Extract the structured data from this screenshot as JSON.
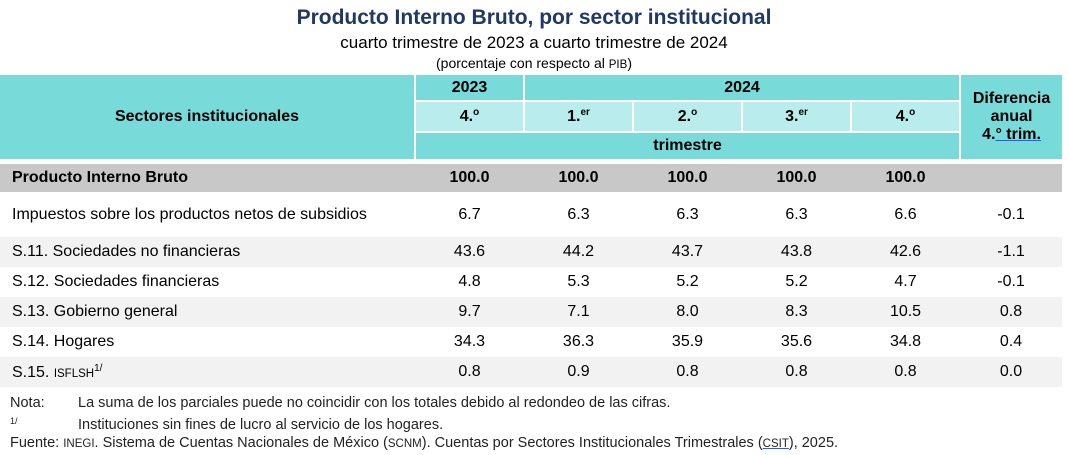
{
  "chart_data": {
    "type": "table",
    "title": "Producto Interno Bruto, por sector institucional",
    "subtitle": "cuarto trimestre de 2023 a cuarto trimestre de 2024",
    "units_prefix": "(porcentaje con respecto al ",
    "units_abbr": "PIB",
    "units_suffix": ")",
    "header": {
      "row_label": "Sectores institucionales",
      "year_2023": "2023",
      "year_2024": "2024",
      "quarters": [
        {
          "num": "4.",
          "sup": "o"
        },
        {
          "num": "1.",
          "sup": "er"
        },
        {
          "num": "2.",
          "sup": "o"
        },
        {
          "num": "3.",
          "sup": "er"
        },
        {
          "num": "4.",
          "sup": "o"
        }
      ],
      "period_label": "trimestre",
      "diff_line1": "Diferencia",
      "diff_line2": "anual",
      "diff_line3_a": "4.",
      "diff_line3_b": "°",
      "diff_line3_c": " trim."
    },
    "rows": [
      {
        "label": "Producto Interno Bruto",
        "values": [
          "100.0",
          "100.0",
          "100.0",
          "100.0",
          "100.0"
        ],
        "diff": ""
      },
      {
        "label": "Impuestos sobre los productos netos de subsidios",
        "values": [
          "6.7",
          "6.3",
          "6.3",
          "6.3",
          "6.6"
        ],
        "diff": "-0.1"
      },
      {
        "label": "S.11. Sociedades no financieras",
        "values": [
          "43.6",
          "44.2",
          "43.7",
          "43.8",
          "42.6"
        ],
        "diff": "-1.1"
      },
      {
        "label": "S.12. Sociedades financieras",
        "values": [
          "4.8",
          "5.3",
          "5.2",
          "5.2",
          "4.7"
        ],
        "diff": "-0.1"
      },
      {
        "label": "S.13. Gobierno general",
        "values": [
          "9.7",
          "7.1",
          "8.0",
          "8.3",
          "10.5"
        ],
        "diff": "0.8"
      },
      {
        "label": "S.14. Hogares",
        "values": [
          "34.3",
          "36.3",
          "35.9",
          "35.6",
          "34.8"
        ],
        "diff": "0.4"
      },
      {
        "label_prefix": "S.15. ",
        "label_abbr": "ISFLSH",
        "label_sup": "1/",
        "values": [
          "0.8",
          "0.9",
          "0.8",
          "0.8",
          "0.8"
        ],
        "diff": "0.0"
      }
    ]
  },
  "notes": {
    "nota_key": "Nota:",
    "nota_text": "La suma de los parciales puede no coincidir con los totales debido al redondeo de las cifras.",
    "fn_key": "1/",
    "fn_text": "Instituciones sin fines de lucro al servicio de los hogares.",
    "source_key": "Fuente: ",
    "source_abbr1": "INEGI",
    "source_mid": ". Sistema de Cuentas Nacionales de México (",
    "source_abbr2": "SCNM",
    "source_mid2": "). Cuentas por Sectores Institucionales Trimestrales (",
    "source_abbr3": "CSIT",
    "source_end": "), 2025."
  }
}
